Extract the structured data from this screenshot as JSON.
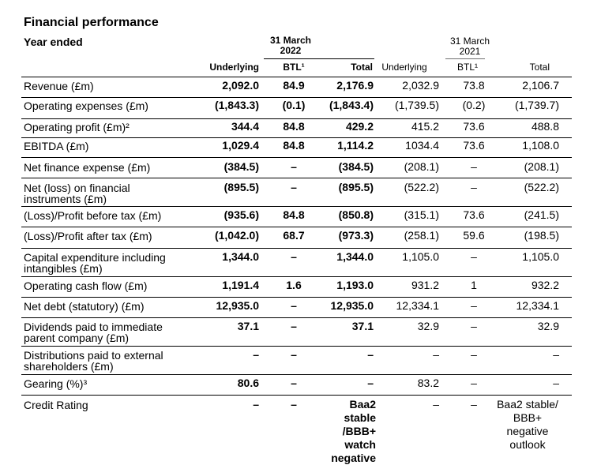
{
  "title": "Financial performance",
  "year_label": "Year ended",
  "periods": [
    {
      "line1": "31 March",
      "line2": "2022"
    },
    {
      "line1": "31 March",
      "line2": "2021"
    }
  ],
  "columns": [
    "Underlying",
    "BTL¹",
    "Total",
    "Underlying",
    "BTL¹",
    "Total"
  ],
  "rows": [
    {
      "label": "Revenue (£m)",
      "values": [
        "2,092.0",
        "84.9",
        "2,176.9",
        "2,032.9",
        "73.8",
        "2,106.7"
      ]
    },
    {
      "label": "Operating expenses (£m)",
      "values": [
        "(1,843.3)",
        "(0.1)",
        "(1,843.4)",
        "(1,739.5)",
        "(0.2)",
        "(1,739.7)"
      ]
    },
    {
      "label": "Operating profit (£m)²",
      "values": [
        "344.4",
        "84.8",
        "429.2",
        "415.2",
        "73.6",
        "488.8"
      ]
    },
    {
      "label": "EBITDA (£m)",
      "values": [
        "1,029.4",
        "84.8",
        "1,114.2",
        "1034.4",
        "73.6",
        "1,108.0"
      ]
    },
    {
      "label": "Net finance expense (£m)",
      "values": [
        "(384.5)",
        "–",
        "(384.5)",
        "(208.1)",
        "–",
        "(208.1)"
      ]
    },
    {
      "label": "Net (loss) on financial instruments (£m)",
      "values": [
        "(895.5)",
        "–",
        "(895.5)",
        "(522.2)",
        "–",
        "(522.2)"
      ]
    },
    {
      "label": "(Loss)/Profit before tax (£m)",
      "values": [
        "(935.6)",
        "84.8",
        "(850.8)",
        "(315.1)",
        "73.6",
        "(241.5)"
      ]
    },
    {
      "label": "(Loss)/Profit after tax (£m)",
      "values": [
        "(1,042.0)",
        "68.7",
        "(973.3)",
        "(258.1)",
        "59.6",
        "(198.5)"
      ]
    },
    {
      "label": "Capital expenditure including intangibles (£m)",
      "values": [
        "1,344.0",
        "–",
        "1,344.0",
        "1,105.0",
        "–",
        "1,105.0"
      ]
    },
    {
      "label": "Operating cash flow (£m)",
      "values": [
        "1,191.4",
        "1.6",
        "1,193.0",
        "931.2",
        "1",
        "932.2"
      ]
    },
    {
      "label": "Net debt (statutory) (£m)",
      "values": [
        "12,935.0",
        "–",
        "12,935.0",
        "12,334.1",
        "–",
        "12,334.1"
      ]
    },
    {
      "label": "Dividends paid to immediate parent company (£m)",
      "values": [
        "37.1",
        "–",
        "37.1",
        "32.9",
        "–",
        "32.9"
      ]
    },
    {
      "label": "Distributions paid to external shareholders (£m)",
      "values": [
        "–",
        "–",
        "–",
        "–",
        "–",
        "–"
      ]
    },
    {
      "label": "Gearing (%)³",
      "values": [
        "80.6",
        "–",
        "–",
        "83.2",
        "–",
        "–"
      ]
    },
    {
      "label": "Credit Rating",
      "values": [
        "–",
        "–",
        "Baa2 stable /BBB+ watch negative",
        "–",
        "–",
        "Baa2 stable/ BBB+ negative outlook"
      ]
    }
  ]
}
